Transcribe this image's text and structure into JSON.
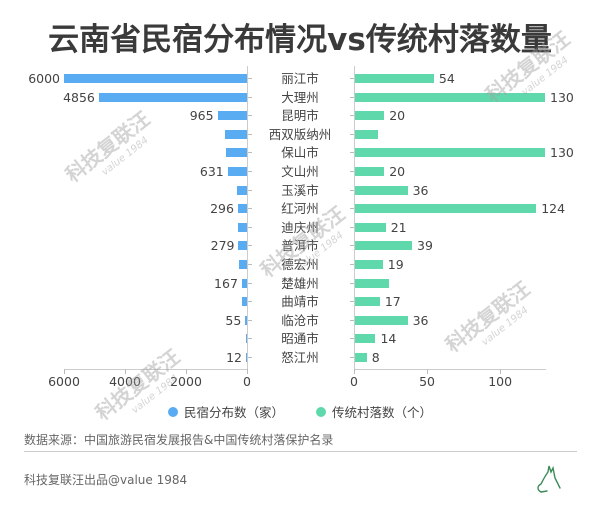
{
  "title": "云南省民宿分布情况vs传统村落数量",
  "chart_data": {
    "type": "bar",
    "orientation": "horizontal-butterfly",
    "title": "云南省民宿分布情况vs传统村落数量",
    "categories": [
      "丽江市",
      "大理州",
      "昆明市",
      "西双版纳州",
      "保山市",
      "文山州",
      "玉溪市",
      "红河州",
      "迪庆州",
      "普洱市",
      "德宏州",
      "楚雄州",
      "曲靖市",
      "临沧市",
      "昭通市",
      "怒江州"
    ],
    "series": [
      {
        "name": "民宿分布数（家）",
        "color": "#5aacf2",
        "values": [
          6000,
          4856,
          965,
          720,
          700,
          631,
          330,
          296,
          300,
          279,
          260,
          167,
          160,
          55,
          20,
          12
        ],
        "labels": [
          "6000",
          "4856",
          "965",
          "",
          "",
          "631",
          "",
          "296",
          "",
          "279",
          "",
          "167",
          "",
          "55",
          "",
          "12"
        ],
        "axis": {
          "ticks": [
            6000,
            4000,
            2000,
            0
          ],
          "range": [
            0,
            6000
          ],
          "reversed": true
        }
      },
      {
        "name": "传统村落数（个）",
        "color": "#5fd9ac",
        "values": [
          54,
          130,
          20,
          16,
          130,
          20,
          36,
          124,
          21,
          39,
          19,
          23,
          17,
          36,
          14,
          8
        ],
        "labels": [
          "54",
          "130",
          "20",
          "",
          "130",
          "20",
          "36",
          "124",
          "21",
          "39",
          "19",
          "",
          "17",
          "36",
          "14",
          "8"
        ],
        "axis": {
          "ticks": [
            0,
            50,
            100
          ],
          "range": [
            0,
            130
          ]
        }
      }
    ],
    "legend_position": "bottom",
    "grid": false
  },
  "axis": {
    "left_ticks": [
      "6000",
      "4000",
      "2000",
      "0"
    ],
    "right_ticks": [
      "0",
      "50",
      "100"
    ]
  },
  "legend": [
    {
      "label": "民宿分布数（家）",
      "color": "#5aacf2"
    },
    {
      "label": "传统村落数（个）",
      "color": "#5fd9ac"
    }
  ],
  "source": "数据来源：中国旅游民宿发展报告&中国传统村落保护名录",
  "footer": "科技复联汪出品@value 1984",
  "watermark": {
    "text": "科技复联汪",
    "sub": "value 1984"
  }
}
